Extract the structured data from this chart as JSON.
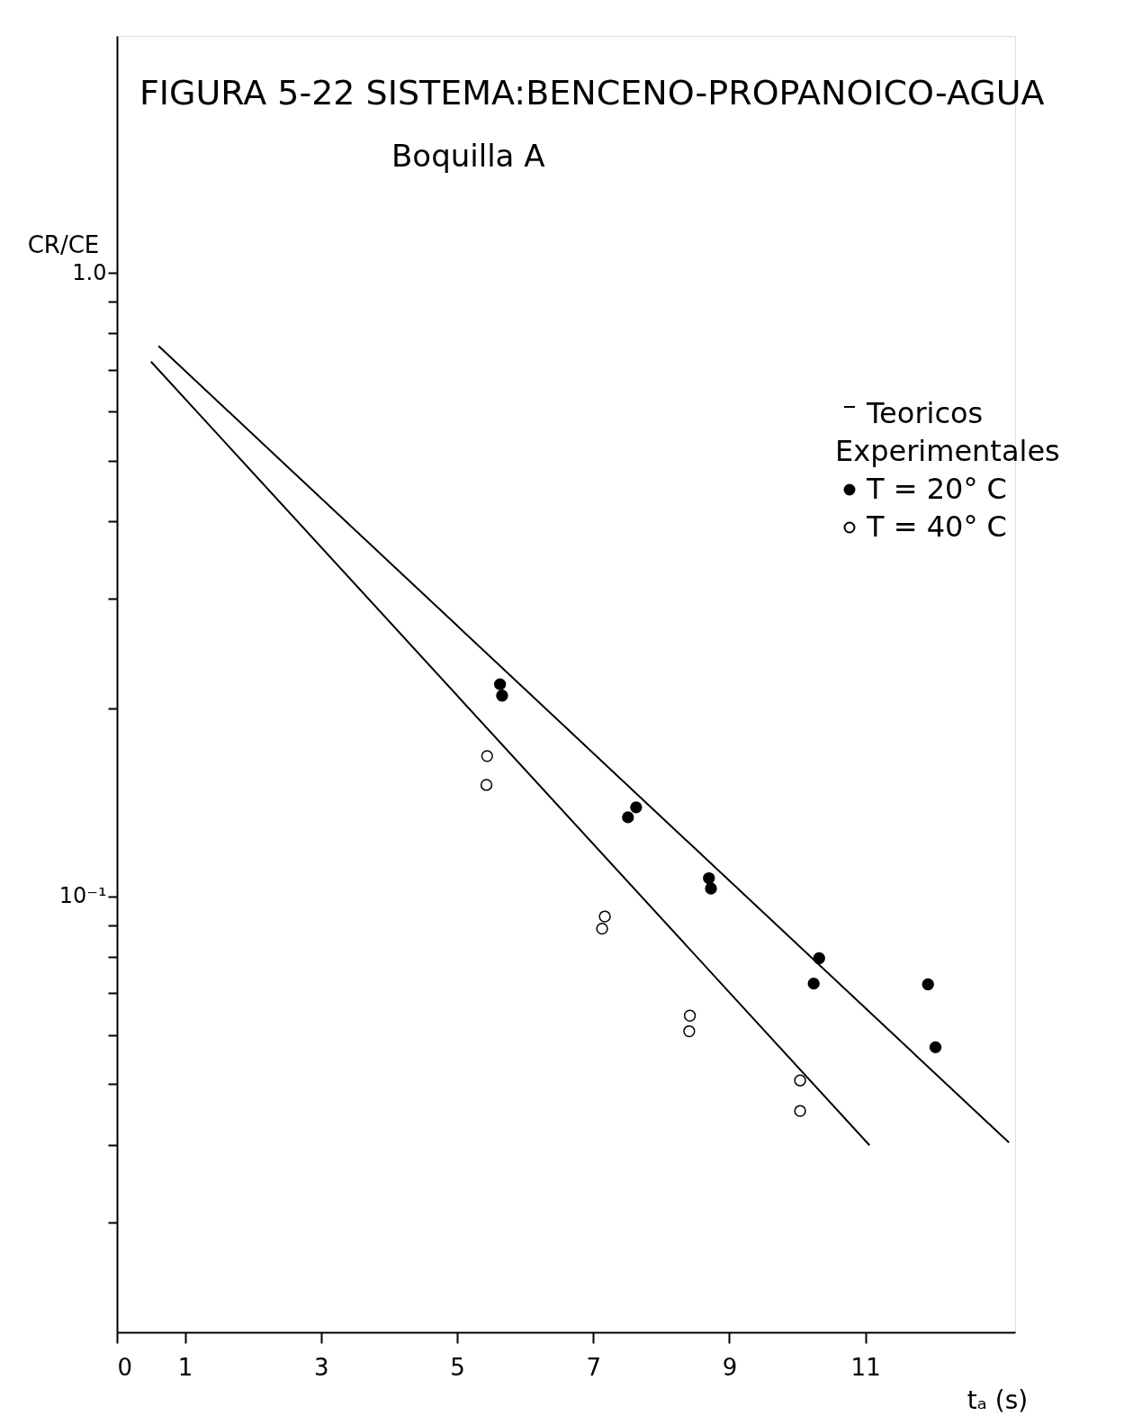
{
  "chart_data": {
    "type": "scatter",
    "title": "FIGURA 5-22 SISTEMA:BENCENO-PROPANOICO-AGUA",
    "subtitle": "Boquilla A",
    "xlabel": "tₐ (s)",
    "ylabel": "CR/CE",
    "legend_title": "Experimentales",
    "legend": "top right",
    "log": "y",
    "grid": false,
    "xlim": [
      0,
      13.2
    ],
    "xticks": [
      0,
      1,
      3,
      5,
      7,
      9,
      11
    ],
    "ylim": [
      0.02,
      2.4
    ],
    "yticks": [
      {
        "value": 1.0,
        "label": "1.0"
      },
      {
        "value": 0.9,
        "label": null
      },
      {
        "value": 0.8,
        "label": null
      },
      {
        "value": 0.7,
        "label": null
      },
      {
        "value": 0.6,
        "label": null
      },
      {
        "value": 0.5,
        "label": null
      },
      {
        "value": 0.4,
        "label": null
      },
      {
        "value": 0.3,
        "label": null
      },
      {
        "value": 0.2,
        "label": null
      },
      {
        "value": 0.1,
        "label": "10⁻¹"
      },
      {
        "value": 0.09,
        "label": null
      },
      {
        "value": 0.08,
        "label": null
      },
      {
        "value": 0.07,
        "label": null
      },
      {
        "value": 0.06,
        "label": null
      },
      {
        "value": 0.05,
        "label": null
      },
      {
        "value": 0.04,
        "label": null
      },
      {
        "value": 0.03,
        "label": null
      }
    ],
    "series": [
      {
        "name": "Teoricos",
        "type": "line",
        "color": "#000000",
        "line_style": "solid",
        "x": [
          0.61,
          13.11
        ],
        "values": [
          0.764,
          0.0403
        ]
      },
      {
        "type": "line",
        "color": "#000000",
        "line_style": "solid",
        "x": [
          0.5,
          11.06
        ],
        "values": [
          0.721,
          0.0399
        ]
      },
      {
        "name": "T = 20° C",
        "marker": "circle",
        "color": "#000000",
        "x": [
          5.63,
          5.66,
          7.51,
          7.63,
          8.7,
          8.73,
          10.32,
          10.24,
          11.92,
          12.03
        ],
        "values": [
          0.219,
          0.21,
          0.134,
          0.139,
          0.107,
          0.103,
          0.0796,
          0.0725,
          0.0723,
          0.0573
        ]
      },
      {
        "name": "T = 40° C",
        "marker": "circle",
        "color": "#ffffff",
        "x": [
          5.44,
          5.43,
          7.17,
          7.13,
          8.42,
          8.41,
          10.04,
          10.04
        ],
        "values": [
          0.168,
          0.151,
          0.0929,
          0.0888,
          0.0644,
          0.0608,
          0.0507,
          0.0453
        ]
      }
    ]
  }
}
